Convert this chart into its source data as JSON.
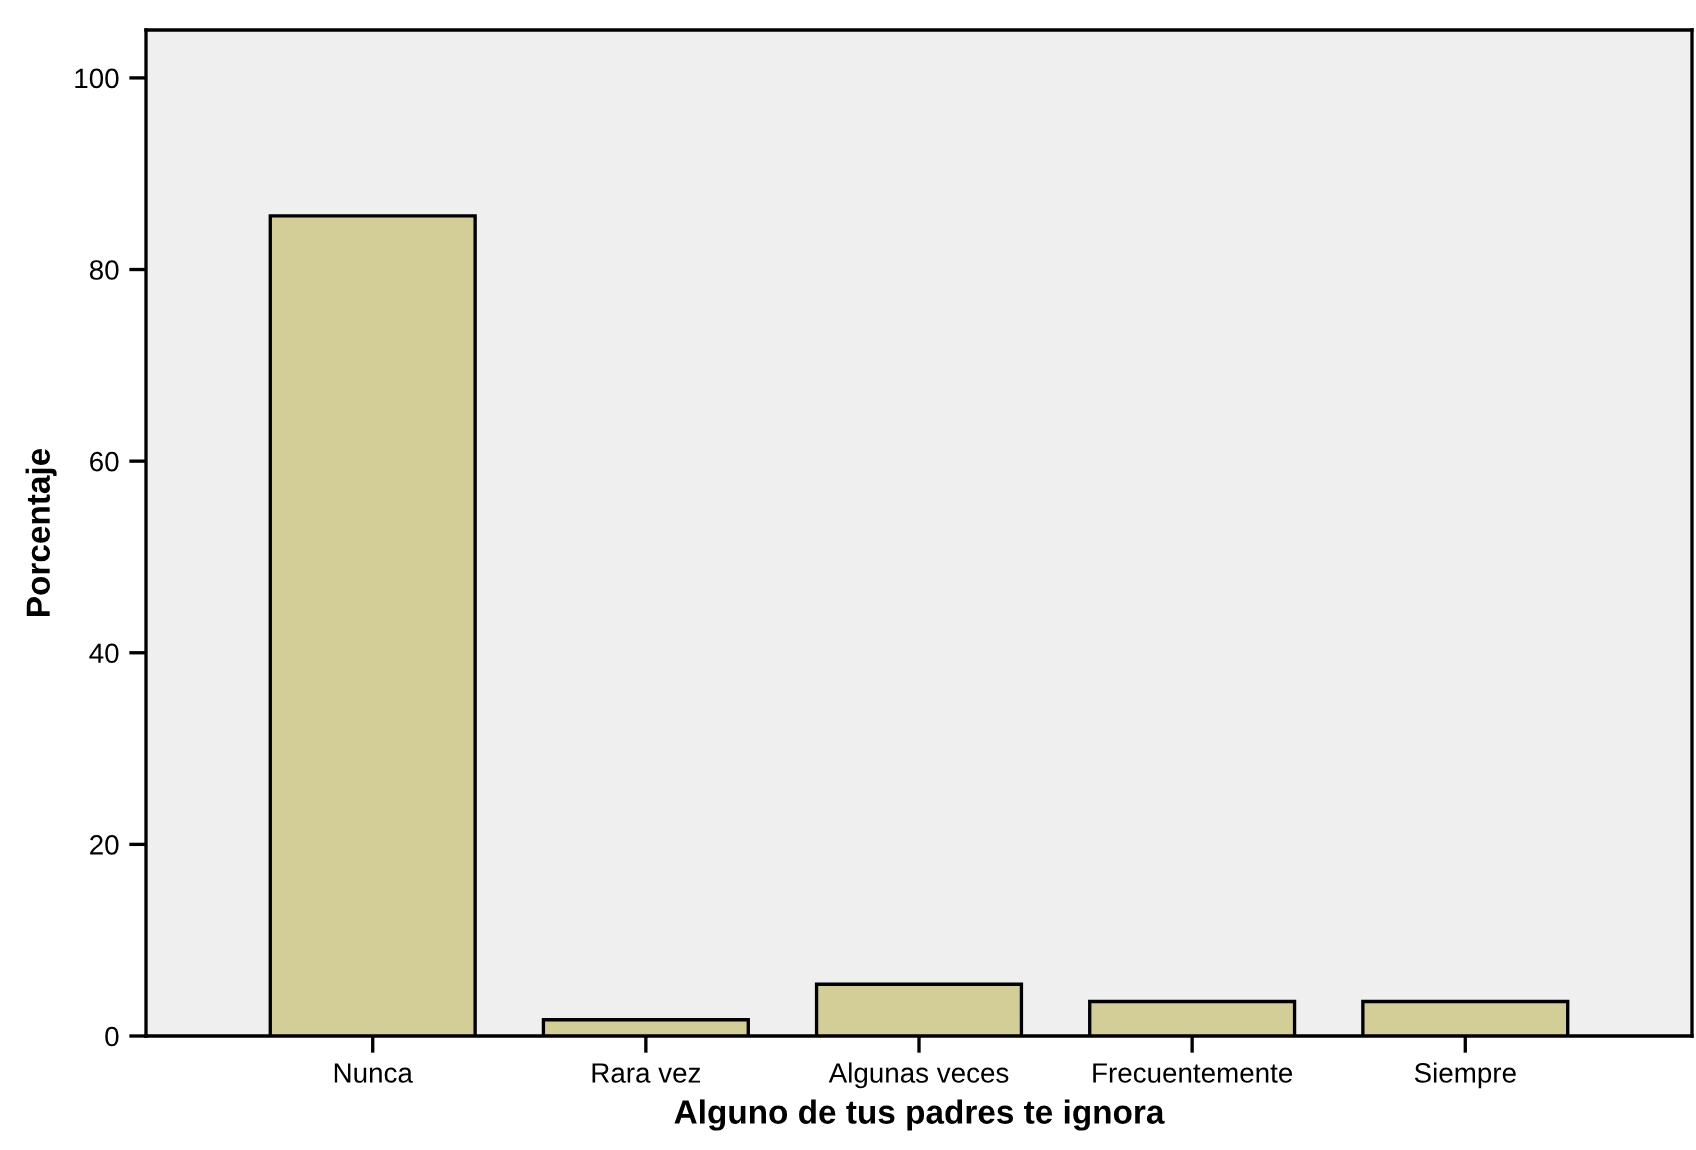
{
  "chart_data": {
    "type": "bar",
    "xlabel": "Alguno de tus padres te ignora",
    "ylabel": "Porcentaje",
    "categories": [
      "Nunca",
      "Rara vez",
      "Algunas veces",
      "Frecuentemente",
      "Siempre"
    ],
    "values": [
      85.6,
      1.7,
      5.4,
      3.6,
      3.6
    ],
    "color": "#d3ce97",
    "ylim": [
      0,
      105
    ],
    "yticks": [
      0,
      20,
      40,
      60,
      80,
      100
    ],
    "grid": false
  }
}
